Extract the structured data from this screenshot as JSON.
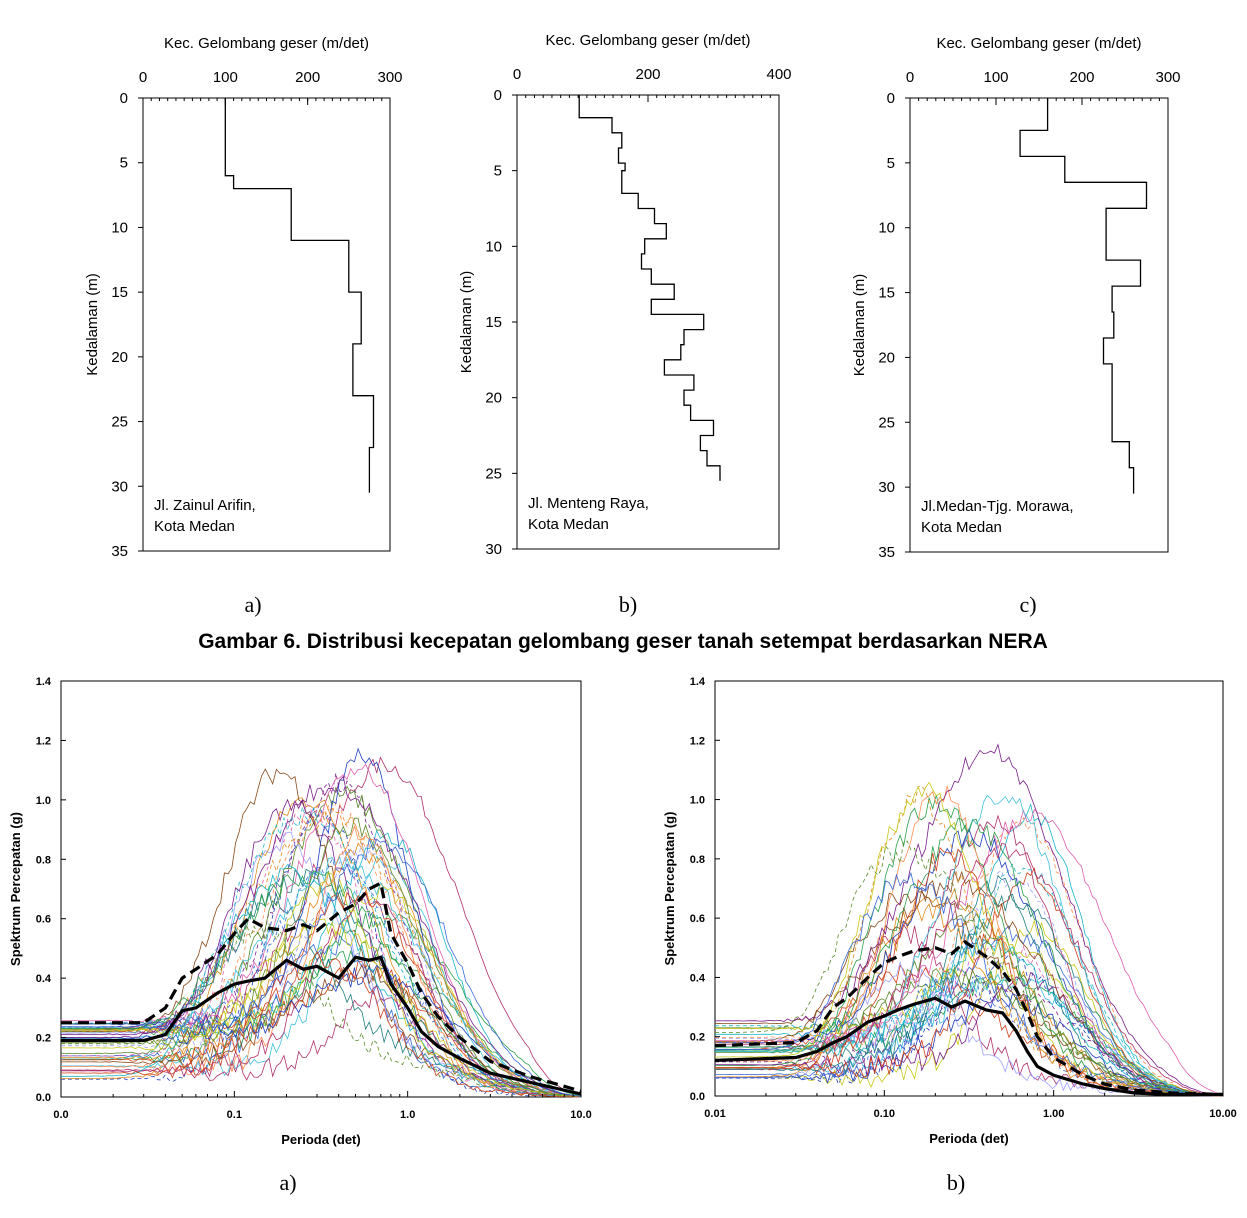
{
  "figure6": {
    "caption": "Gambar 6. Distribusi kecepatan gelombang geser tanah setempat berdasarkan NERA",
    "panel_labels": [
      "a)",
      "b)",
      "c)"
    ]
  },
  "figure7": {
    "panel_labels": [
      "a)",
      "b)"
    ]
  },
  "chart_data": [
    {
      "type": "line",
      "xlabel": "Kec. Gelombang geser (m/det)",
      "ylabel": "Kedalaman (m)",
      "xlim": [
        0,
        300
      ],
      "ylim": [
        0,
        35
      ],
      "xticks": [
        0,
        100,
        200,
        300
      ],
      "yticks": [
        0,
        5,
        10,
        15,
        20,
        25,
        30,
        35
      ],
      "annotation": [
        "Jl. Zainul Arifin,",
        "Kota Medan"
      ],
      "profile": [
        [
          100,
          0
        ],
        [
          100,
          6
        ],
        [
          110,
          6
        ],
        [
          110,
          7
        ],
        [
          180,
          7
        ],
        [
          180,
          11
        ],
        [
          250,
          11
        ],
        [
          250,
          15
        ],
        [
          265,
          15
        ],
        [
          265,
          19
        ],
        [
          255,
          19
        ],
        [
          255,
          23
        ],
        [
          280,
          23
        ],
        [
          280,
          27
        ],
        [
          275,
          27
        ],
        [
          275,
          30.5
        ]
      ]
    },
    {
      "type": "line",
      "xlabel": "Kec. Gelombang geser (m/det)",
      "ylabel": "Kedalaman (m)",
      "xlim": [
        0,
        400
      ],
      "ylim": [
        0,
        30
      ],
      "xticks": [
        0,
        200,
        400
      ],
      "yticks": [
        0,
        5,
        10,
        15,
        20,
        25,
        30
      ],
      "annotation": [
        "Jl. Menteng Raya,",
        "Kota Medan"
      ],
      "profile": [
        [
          95,
          0
        ],
        [
          95,
          1.5
        ],
        [
          145,
          1.5
        ],
        [
          145,
          2.5
        ],
        [
          160,
          2.5
        ],
        [
          160,
          3.5
        ],
        [
          155,
          3.5
        ],
        [
          155,
          4.5
        ],
        [
          165,
          4.5
        ],
        [
          165,
          5
        ],
        [
          160,
          5
        ],
        [
          160,
          6.5
        ],
        [
          185,
          6.5
        ],
        [
          185,
          7.5
        ],
        [
          210,
          7.5
        ],
        [
          210,
          8.5
        ],
        [
          228,
          8.5
        ],
        [
          228,
          9.5
        ],
        [
          195,
          9.5
        ],
        [
          195,
          10.5
        ],
        [
          190,
          10.5
        ],
        [
          190,
          11.5
        ],
        [
          205,
          11.5
        ],
        [
          205,
          12.5
        ],
        [
          240,
          12.5
        ],
        [
          240,
          13.5
        ],
        [
          205,
          13.5
        ],
        [
          205,
          14.5
        ],
        [
          285,
          14.5
        ],
        [
          285,
          15.5
        ],
        [
          255,
          15.5
        ],
        [
          255,
          16.5
        ],
        [
          250,
          16.5
        ],
        [
          250,
          17.5
        ],
        [
          225,
          17.5
        ],
        [
          225,
          18.5
        ],
        [
          270,
          18.5
        ],
        [
          270,
          19.5
        ],
        [
          255,
          19.5
        ],
        [
          255,
          20.5
        ],
        [
          265,
          20.5
        ],
        [
          265,
          21.5
        ],
        [
          300,
          21.5
        ],
        [
          300,
          22.5
        ],
        [
          280,
          22.5
        ],
        [
          280,
          23.5
        ],
        [
          290,
          23.5
        ],
        [
          290,
          24.5
        ],
        [
          310,
          24.5
        ],
        [
          310,
          25.5
        ]
      ]
    },
    {
      "type": "line",
      "xlabel": "Kec. Gelombang geser (m/det)",
      "ylabel": "Kedalaman (m)",
      "xlim": [
        0,
        300
      ],
      "ylim": [
        0,
        35
      ],
      "xticks": [
        0,
        100,
        200,
        300
      ],
      "yticks": [
        0,
        5,
        10,
        15,
        20,
        25,
        30,
        35
      ],
      "annotation": [
        "Jl.Medan-Tjg. Morawa,",
        "Kota Medan"
      ],
      "profile": [
        [
          160,
          0
        ],
        [
          160,
          2.5
        ],
        [
          128,
          2.5
        ],
        [
          128,
          4.5
        ],
        [
          180,
          4.5
        ],
        [
          180,
          6.5
        ],
        [
          275,
          6.5
        ],
        [
          275,
          8.5
        ],
        [
          228,
          8.5
        ],
        [
          228,
          12.5
        ],
        [
          268,
          12.5
        ],
        [
          268,
          14.5
        ],
        [
          235,
          14.5
        ],
        [
          235,
          16.5
        ],
        [
          237,
          16.5
        ],
        [
          237,
          18.5
        ],
        [
          225,
          18.5
        ],
        [
          225,
          20.5
        ],
        [
          235,
          20.5
        ],
        [
          235,
          26.5
        ],
        [
          255,
          26.5
        ],
        [
          255,
          28.5
        ],
        [
          260,
          28.5
        ],
        [
          260,
          30.5
        ]
      ]
    },
    {
      "type": "line",
      "xlabel": "Perioda (det)",
      "ylabel": "Spektrum Percepatan (g)",
      "xscale": "log",
      "xlim": [
        0.01,
        10
      ],
      "ylim": [
        0,
        1.4
      ],
      "xtick_values": [
        0.01,
        0.1,
        1,
        10
      ],
      "xtick_labels": [
        "0.0",
        "0.1",
        "1.0",
        "10.0"
      ],
      "yticks": [
        "0.0",
        "0.2",
        "0.4",
        "0.6",
        "0.8",
        "1.0",
        "1.2",
        "1.4"
      ],
      "series": [
        {
          "style": "solid-bold",
          "x": [
            0.01,
            0.03,
            0.04,
            0.05,
            0.06,
            0.08,
            0.1,
            0.12,
            0.15,
            0.2,
            0.25,
            0.3,
            0.4,
            0.5,
            0.6,
            0.7,
            0.8,
            1,
            1.2,
            1.5,
            2,
            3,
            5,
            10
          ],
          "y": [
            0.19,
            0.19,
            0.21,
            0.29,
            0.3,
            0.35,
            0.38,
            0.39,
            0.4,
            0.46,
            0.43,
            0.44,
            0.4,
            0.47,
            0.46,
            0.47,
            0.38,
            0.3,
            0.22,
            0.17,
            0.13,
            0.08,
            0.05,
            0.01
          ]
        },
        {
          "style": "dashed-bold",
          "x": [
            0.01,
            0.03,
            0.04,
            0.05,
            0.06,
            0.08,
            0.1,
            0.12,
            0.15,
            0.2,
            0.25,
            0.3,
            0.4,
            0.5,
            0.6,
            0.7,
            0.8,
            1,
            1.2,
            1.5,
            2,
            3,
            5,
            10
          ],
          "y": [
            0.25,
            0.25,
            0.3,
            0.4,
            0.43,
            0.48,
            0.55,
            0.6,
            0.57,
            0.56,
            0.58,
            0.56,
            0.62,
            0.65,
            0.7,
            0.72,
            0.55,
            0.45,
            0.35,
            0.27,
            0.2,
            0.12,
            0.07,
            0.02
          ]
        }
      ]
    },
    {
      "type": "line",
      "xlabel": "Perioda (det)",
      "ylabel": "Spektrum Percepatan (g)",
      "xscale": "log",
      "xlim": [
        0.01,
        10
      ],
      "ylim": [
        0,
        1.4
      ],
      "xtick_values": [
        0.01,
        0.1,
        1,
        10
      ],
      "xtick_labels": [
        "0.01",
        "0.10",
        "1.00",
        "10.00"
      ],
      "yticks": [
        "0.0",
        "0.2",
        "0.4",
        "0.6",
        "0.8",
        "1.0",
        "1.2",
        "1.4"
      ],
      "series": [
        {
          "style": "solid-bold",
          "x": [
            0.01,
            0.03,
            0.04,
            0.05,
            0.06,
            0.08,
            0.1,
            0.12,
            0.15,
            0.2,
            0.25,
            0.3,
            0.4,
            0.5,
            0.6,
            0.7,
            0.8,
            1,
            1.5,
            2,
            3,
            5,
            10
          ],
          "y": [
            0.12,
            0.13,
            0.15,
            0.18,
            0.2,
            0.25,
            0.27,
            0.29,
            0.31,
            0.33,
            0.3,
            0.32,
            0.29,
            0.28,
            0.22,
            0.15,
            0.1,
            0.07,
            0.04,
            0.025,
            0.01,
            0.005,
            0.005
          ]
        },
        {
          "style": "dashed-bold",
          "x": [
            0.01,
            0.03,
            0.04,
            0.05,
            0.06,
            0.08,
            0.1,
            0.12,
            0.15,
            0.2,
            0.25,
            0.3,
            0.4,
            0.5,
            0.6,
            0.7,
            0.8,
            1,
            1.5,
            2,
            3,
            5,
            10
          ],
          "y": [
            0.17,
            0.18,
            0.22,
            0.3,
            0.33,
            0.4,
            0.45,
            0.47,
            0.49,
            0.5,
            0.48,
            0.52,
            0.47,
            0.42,
            0.36,
            0.28,
            0.2,
            0.13,
            0.07,
            0.04,
            0.02,
            0.01,
            0.005
          ]
        }
      ]
    }
  ]
}
